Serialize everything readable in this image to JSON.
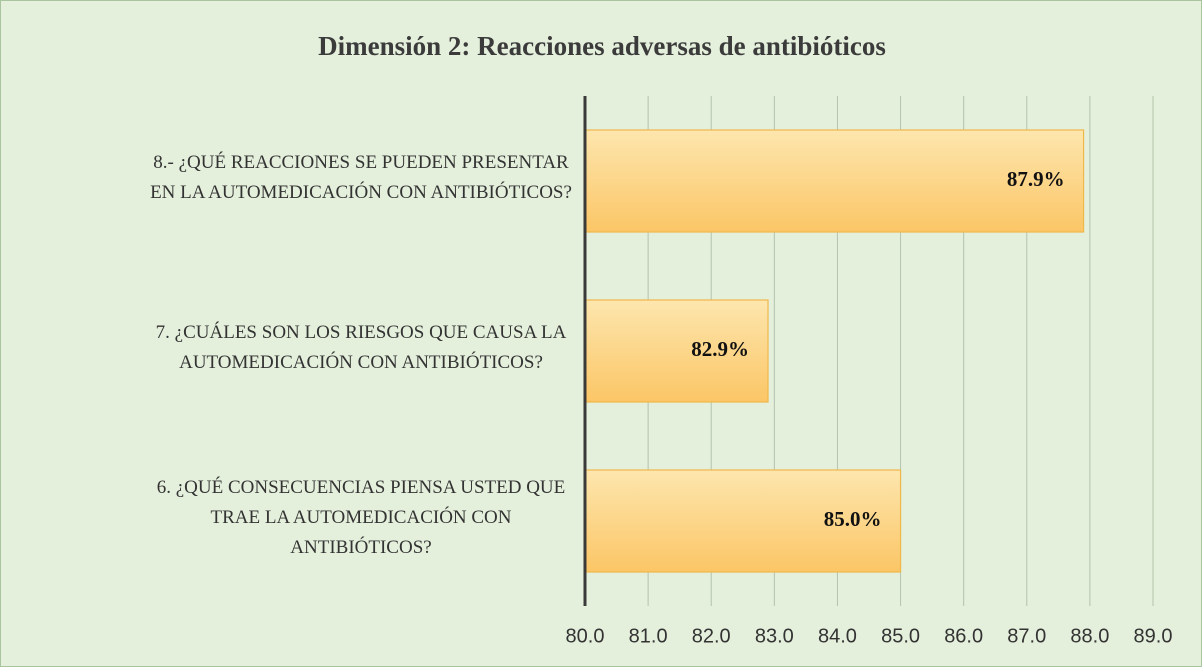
{
  "chart_data": {
    "type": "barh",
    "title": "Dimensión 2: Reacciones adversas de antibióticos",
    "categories": [
      "8.- ¿QUÉ REACCIONES SE PUEDEN PRESENTAR\nEN LA AUTOMEDICACIÓN CON ANTIBIÓTICOS?",
      "7. ¿CUÁLES SON LOS RIESGOS QUE CAUSA LA\nAUTOMEDICACIÓN CON ANTIBIÓTICOS?",
      "6. ¿QUÉ CONSECUENCIAS PIENSA USTED QUE\nTRAE LA AUTOMEDICACIÓN CON\nANTIBIÓTICOS?"
    ],
    "values": [
      87.9,
      82.9,
      85.0
    ],
    "value_labels": [
      "87.9%",
      "82.9%",
      "85.0%"
    ],
    "color": "#fcd27e",
    "xlim": [
      80,
      89
    ],
    "xticks": [
      {
        "value": 80,
        "label": "80.0"
      },
      {
        "value": 81,
        "label": "81.0"
      },
      {
        "value": 82,
        "label": "82.0"
      },
      {
        "value": 83,
        "label": "83.0"
      },
      {
        "value": 84,
        "label": "84.0"
      },
      {
        "value": 85,
        "label": "85.0"
      },
      {
        "value": 86,
        "label": "86.0"
      },
      {
        "value": 87,
        "label": "87.0"
      },
      {
        "value": 88,
        "label": "88.0"
      },
      {
        "value": 89,
        "label": "89.0"
      }
    ],
    "grid": true
  }
}
